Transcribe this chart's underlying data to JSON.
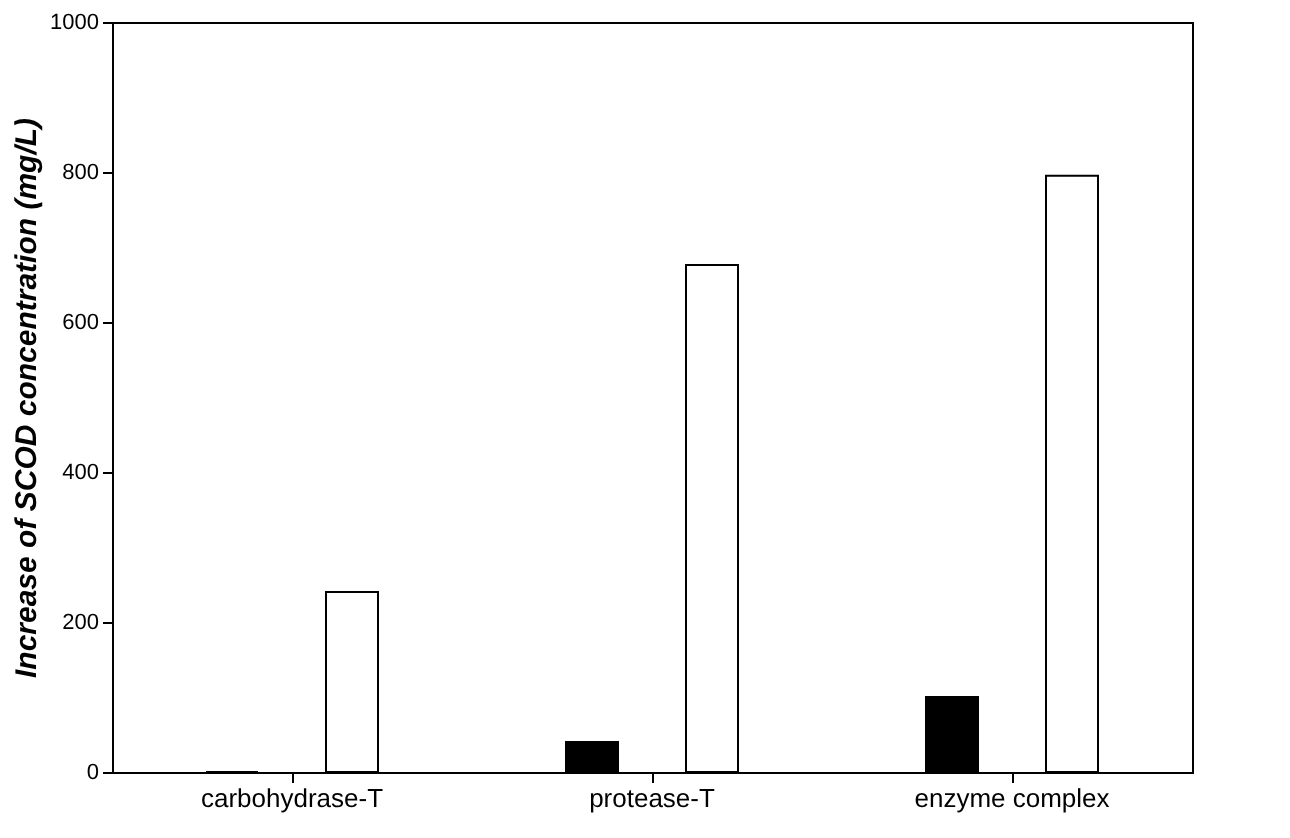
{
  "chart_data": {
    "type": "bar",
    "ylabel": "Increase of SCOD concentration (mg/L)",
    "categories": [
      "carbohydrase-T",
      "protease-T",
      "enzyme complex"
    ],
    "series": [
      {
        "color": "#000000",
        "values": [
          0,
          40,
          100
        ]
      },
      {
        "color": "#ffffff",
        "values": [
          240,
          676,
          795
        ]
      }
    ],
    "ylim": [
      0,
      1000
    ],
    "yticks": [
      0,
      200,
      400,
      600,
      800,
      1000
    ],
    "grid": false
  }
}
